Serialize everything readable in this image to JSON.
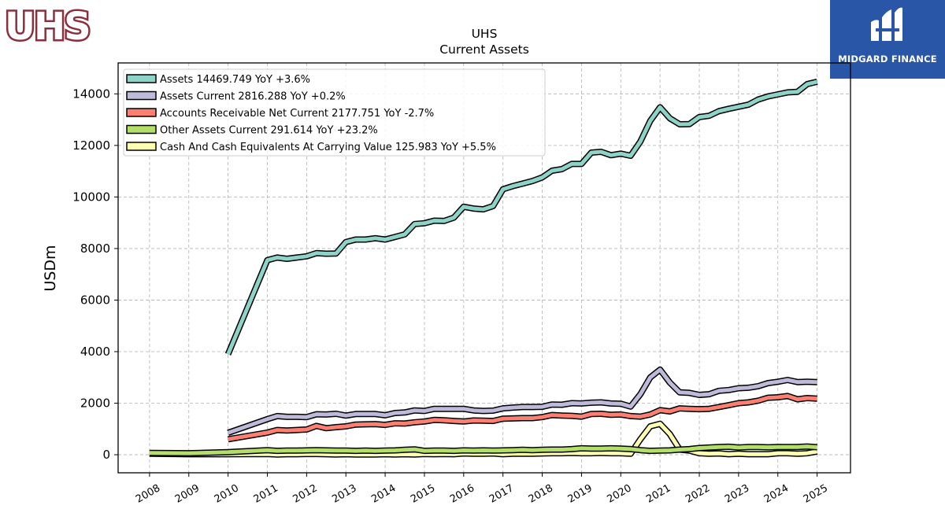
{
  "brand": {
    "logo_text": "UHS",
    "badge_text": "MIDGARD FINANCE"
  },
  "chart_data": {
    "type": "line",
    "title": "UHS",
    "subtitle": "Current  Assets",
    "ylabel": "USDm",
    "xlabel": "",
    "ylim": [
      -700,
      15200
    ],
    "xlim": [
      2007.2,
      2025.85
    ],
    "yticks": [
      0,
      2000,
      4000,
      6000,
      8000,
      10000,
      12000,
      14000
    ],
    "xticks": [
      2008,
      2009,
      2010,
      2011,
      2012,
      2013,
      2014,
      2015,
      2016,
      2017,
      2018,
      2019,
      2020,
      2021,
      2022,
      2023,
      2024,
      2025
    ],
    "grid": true,
    "legend_position": "top-left",
    "series": [
      {
        "name": "Assets",
        "legend_label": "Assets  14469.749 YoY +3.6%",
        "color": "#8dd3c7",
        "points": [
          [
            2010.0,
            3900
          ],
          [
            2011.0,
            7550
          ],
          [
            2011.25,
            7650
          ],
          [
            2011.5,
            7600
          ],
          [
            2011.75,
            7650
          ],
          [
            2012.0,
            7700
          ],
          [
            2012.25,
            7820
          ],
          [
            2012.5,
            7800
          ],
          [
            2012.75,
            7810
          ],
          [
            2013.0,
            8250
          ],
          [
            2013.25,
            8350
          ],
          [
            2013.5,
            8350
          ],
          [
            2013.75,
            8400
          ],
          [
            2014.0,
            8350
          ],
          [
            2014.25,
            8450
          ],
          [
            2014.5,
            8550
          ],
          [
            2014.75,
            8950
          ],
          [
            2015.0,
            8980
          ],
          [
            2015.25,
            9080
          ],
          [
            2015.5,
            9070
          ],
          [
            2015.75,
            9200
          ],
          [
            2016.0,
            9620
          ],
          [
            2016.25,
            9550
          ],
          [
            2016.5,
            9520
          ],
          [
            2016.75,
            9650
          ],
          [
            2017.0,
            10300
          ],
          [
            2017.25,
            10420
          ],
          [
            2017.5,
            10520
          ],
          [
            2017.75,
            10620
          ],
          [
            2018.0,
            10760
          ],
          [
            2018.25,
            11020
          ],
          [
            2018.5,
            11080
          ],
          [
            2018.75,
            11280
          ],
          [
            2019.0,
            11280
          ],
          [
            2019.25,
            11720
          ],
          [
            2019.5,
            11750
          ],
          [
            2019.75,
            11620
          ],
          [
            2020.0,
            11680
          ],
          [
            2020.25,
            11600
          ],
          [
            2020.5,
            12150
          ],
          [
            2020.75,
            12950
          ],
          [
            2021.0,
            13480
          ],
          [
            2021.25,
            13050
          ],
          [
            2021.5,
            12820
          ],
          [
            2021.75,
            12830
          ],
          [
            2022.0,
            13100
          ],
          [
            2022.25,
            13150
          ],
          [
            2022.5,
            13330
          ],
          [
            2022.75,
            13420
          ],
          [
            2023.0,
            13500
          ],
          [
            2023.25,
            13580
          ],
          [
            2023.5,
            13780
          ],
          [
            2023.75,
            13900
          ],
          [
            2024.0,
            13980
          ],
          [
            2024.25,
            14060
          ],
          [
            2024.5,
            14080
          ],
          [
            2024.75,
            14380
          ],
          [
            2025.0,
            14469.749
          ]
        ]
      },
      {
        "name": "Assets Current",
        "legend_label": "Assets Current  2816.288 YoY +0.2%",
        "color": "#bebada",
        "points": [
          [
            2010.0,
            850
          ],
          [
            2011.0,
            1380
          ],
          [
            2011.25,
            1500
          ],
          [
            2011.5,
            1470
          ],
          [
            2011.75,
            1470
          ],
          [
            2012.0,
            1460
          ],
          [
            2012.25,
            1570
          ],
          [
            2012.5,
            1560
          ],
          [
            2012.75,
            1590
          ],
          [
            2013.0,
            1520
          ],
          [
            2013.25,
            1580
          ],
          [
            2013.5,
            1580
          ],
          [
            2013.75,
            1580
          ],
          [
            2014.0,
            1530
          ],
          [
            2014.25,
            1620
          ],
          [
            2014.5,
            1640
          ],
          [
            2014.75,
            1720
          ],
          [
            2015.0,
            1700
          ],
          [
            2015.25,
            1780
          ],
          [
            2015.5,
            1780
          ],
          [
            2015.75,
            1780
          ],
          [
            2016.0,
            1780
          ],
          [
            2016.25,
            1720
          ],
          [
            2016.5,
            1700
          ],
          [
            2016.75,
            1710
          ],
          [
            2017.0,
            1800
          ],
          [
            2017.25,
            1830
          ],
          [
            2017.5,
            1850
          ],
          [
            2017.75,
            1850
          ],
          [
            2018.0,
            1860
          ],
          [
            2018.25,
            1950
          ],
          [
            2018.5,
            1940
          ],
          [
            2018.75,
            2000
          ],
          [
            2019.0,
            1990
          ],
          [
            2019.25,
            2020
          ],
          [
            2019.5,
            2030
          ],
          [
            2019.75,
            1990
          ],
          [
            2020.0,
            1980
          ],
          [
            2020.25,
            1870
          ],
          [
            2020.5,
            2350
          ],
          [
            2020.75,
            3000
          ],
          [
            2021.0,
            3300
          ],
          [
            2021.25,
            2800
          ],
          [
            2021.5,
            2420
          ],
          [
            2021.75,
            2400
          ],
          [
            2022.0,
            2320
          ],
          [
            2022.25,
            2350
          ],
          [
            2022.5,
            2480
          ],
          [
            2022.75,
            2510
          ],
          [
            2023.0,
            2580
          ],
          [
            2023.25,
            2600
          ],
          [
            2023.5,
            2660
          ],
          [
            2023.75,
            2780
          ],
          [
            2024.0,
            2830
          ],
          [
            2024.25,
            2900
          ],
          [
            2024.5,
            2820
          ],
          [
            2024.75,
            2830
          ],
          [
            2025.0,
            2816.288
          ]
        ]
      },
      {
        "name": "Accounts Receivable Net Current",
        "legend_label": "Accounts Receivable Net Current  2177.751 YoY -2.7%",
        "color": "#fb8072",
        "points": [
          [
            2010.0,
            600
          ],
          [
            2011.0,
            860
          ],
          [
            2011.25,
            960
          ],
          [
            2011.5,
            940
          ],
          [
            2011.75,
            960
          ],
          [
            2012.0,
            980
          ],
          [
            2012.25,
            1120
          ],
          [
            2012.5,
            1030
          ],
          [
            2012.75,
            1070
          ],
          [
            2013.0,
            1100
          ],
          [
            2013.25,
            1170
          ],
          [
            2013.5,
            1180
          ],
          [
            2013.75,
            1190
          ],
          [
            2014.0,
            1160
          ],
          [
            2014.25,
            1220
          ],
          [
            2014.5,
            1210
          ],
          [
            2014.75,
            1260
          ],
          [
            2015.0,
            1290
          ],
          [
            2015.25,
            1350
          ],
          [
            2015.5,
            1340
          ],
          [
            2015.75,
            1310
          ],
          [
            2016.0,
            1290
          ],
          [
            2016.25,
            1330
          ],
          [
            2016.5,
            1320
          ],
          [
            2016.75,
            1310
          ],
          [
            2017.0,
            1400
          ],
          [
            2017.25,
            1410
          ],
          [
            2017.5,
            1420
          ],
          [
            2017.75,
            1420
          ],
          [
            2018.0,
            1460
          ],
          [
            2018.25,
            1540
          ],
          [
            2018.5,
            1520
          ],
          [
            2018.75,
            1510
          ],
          [
            2019.0,
            1480
          ],
          [
            2019.25,
            1580
          ],
          [
            2019.5,
            1590
          ],
          [
            2019.75,
            1550
          ],
          [
            2020.0,
            1560
          ],
          [
            2020.25,
            1500
          ],
          [
            2020.5,
            1480
          ],
          [
            2020.75,
            1560
          ],
          [
            2021.0,
            1730
          ],
          [
            2021.25,
            1680
          ],
          [
            2021.5,
            1800
          ],
          [
            2021.75,
            1780
          ],
          [
            2022.0,
            1770
          ],
          [
            2022.25,
            1780
          ],
          [
            2022.5,
            1850
          ],
          [
            2022.75,
            1920
          ],
          [
            2023.0,
            2000
          ],
          [
            2023.25,
            2030
          ],
          [
            2023.5,
            2100
          ],
          [
            2023.75,
            2210
          ],
          [
            2024.0,
            2230
          ],
          [
            2024.25,
            2280
          ],
          [
            2024.5,
            2150
          ],
          [
            2024.75,
            2200
          ],
          [
            2025.0,
            2177.751
          ]
        ]
      },
      {
        "name": "Other Assets Current",
        "legend_label": "Other Assets Current  291.614 YoY +23.2%",
        "color": "#b3de69",
        "points": [
          [
            2008.0,
            70
          ],
          [
            2009.0,
            60
          ],
          [
            2010.0,
            100
          ],
          [
            2011.0,
            180
          ],
          [
            2011.25,
            150
          ],
          [
            2011.5,
            160
          ],
          [
            2011.75,
            160
          ],
          [
            2012.0,
            170
          ],
          [
            2012.25,
            180
          ],
          [
            2012.5,
            170
          ],
          [
            2012.75,
            160
          ],
          [
            2013.0,
            160
          ],
          [
            2013.25,
            150
          ],
          [
            2013.5,
            160
          ],
          [
            2013.75,
            150
          ],
          [
            2014.0,
            160
          ],
          [
            2014.25,
            170
          ],
          [
            2014.5,
            190
          ],
          [
            2014.75,
            210
          ],
          [
            2015.0,
            150
          ],
          [
            2015.25,
            160
          ],
          [
            2015.5,
            160
          ],
          [
            2015.75,
            150
          ],
          [
            2016.0,
            170
          ],
          [
            2016.25,
            160
          ],
          [
            2016.5,
            170
          ],
          [
            2016.75,
            160
          ],
          [
            2017.0,
            170
          ],
          [
            2017.25,
            180
          ],
          [
            2017.5,
            190
          ],
          [
            2017.75,
            180
          ],
          [
            2018.0,
            190
          ],
          [
            2018.25,
            200
          ],
          [
            2018.5,
            200
          ],
          [
            2018.75,
            220
          ],
          [
            2019.0,
            250
          ],
          [
            2019.25,
            240
          ],
          [
            2019.5,
            240
          ],
          [
            2019.75,
            250
          ],
          [
            2020.0,
            240
          ],
          [
            2020.25,
            220
          ],
          [
            2020.5,
            180
          ],
          [
            2020.75,
            150
          ],
          [
            2021.0,
            160
          ],
          [
            2021.25,
            170
          ],
          [
            2021.5,
            200
          ],
          [
            2021.75,
            220
          ],
          [
            2022.0,
            260
          ],
          [
            2022.25,
            280
          ],
          [
            2022.5,
            300
          ],
          [
            2022.75,
            310
          ],
          [
            2023.0,
            280
          ],
          [
            2023.25,
            300
          ],
          [
            2023.5,
            300
          ],
          [
            2023.75,
            290
          ],
          [
            2024.0,
            300
          ],
          [
            2024.25,
            300
          ],
          [
            2024.5,
            300
          ],
          [
            2024.75,
            320
          ],
          [
            2025.0,
            291.614
          ]
        ]
      },
      {
        "name": "Cash And Cash Equivalents At Carrying Value",
        "legend_label": "Cash And Cash Equivalents At Carrying Value  125.983 YoY +5.5%",
        "color": "#ffffb3",
        "points": [
          [
            2008.0,
            40
          ],
          [
            2009.0,
            20
          ],
          [
            2010.0,
            20
          ],
          [
            2011.0,
            30
          ],
          [
            2011.25,
            10
          ],
          [
            2011.5,
            20
          ],
          [
            2011.75,
            20
          ],
          [
            2012.0,
            30
          ],
          [
            2012.25,
            30
          ],
          [
            2012.5,
            20
          ],
          [
            2012.75,
            10
          ],
          [
            2013.0,
            20
          ],
          [
            2013.25,
            10
          ],
          [
            2013.5,
            10
          ],
          [
            2013.75,
            10
          ],
          [
            2014.0,
            20
          ],
          [
            2014.25,
            10
          ],
          [
            2014.5,
            20
          ],
          [
            2014.75,
            10
          ],
          [
            2015.0,
            30
          ],
          [
            2015.25,
            20
          ],
          [
            2015.5,
            30
          ],
          [
            2015.75,
            20
          ],
          [
            2016.0,
            50
          ],
          [
            2016.25,
            40
          ],
          [
            2016.5,
            40
          ],
          [
            2016.75,
            50
          ],
          [
            2017.0,
            20
          ],
          [
            2017.25,
            40
          ],
          [
            2017.5,
            40
          ],
          [
            2017.75,
            40
          ],
          [
            2018.0,
            50
          ],
          [
            2018.25,
            60
          ],
          [
            2018.5,
            60
          ],
          [
            2018.75,
            70
          ],
          [
            2019.0,
            60
          ],
          [
            2019.25,
            60
          ],
          [
            2019.5,
            70
          ],
          [
            2019.75,
            60
          ],
          [
            2020.0,
            60
          ],
          [
            2020.25,
            40
          ],
          [
            2020.5,
            600
          ],
          [
            2020.75,
            1100
          ],
          [
            2021.0,
            1200
          ],
          [
            2021.25,
            800
          ],
          [
            2021.5,
            200
          ],
          [
            2021.75,
            160
          ],
          [
            2022.0,
            60
          ],
          [
            2022.25,
            40
          ],
          [
            2022.5,
            50
          ],
          [
            2022.75,
            20
          ],
          [
            2023.0,
            40
          ],
          [
            2023.25,
            20
          ],
          [
            2023.5,
            20
          ],
          [
            2023.75,
            20
          ],
          [
            2024.0,
            60
          ],
          [
            2024.25,
            60
          ],
          [
            2024.5,
            40
          ],
          [
            2024.75,
            60
          ],
          [
            2025.0,
            125.983
          ]
        ]
      }
    ]
  }
}
